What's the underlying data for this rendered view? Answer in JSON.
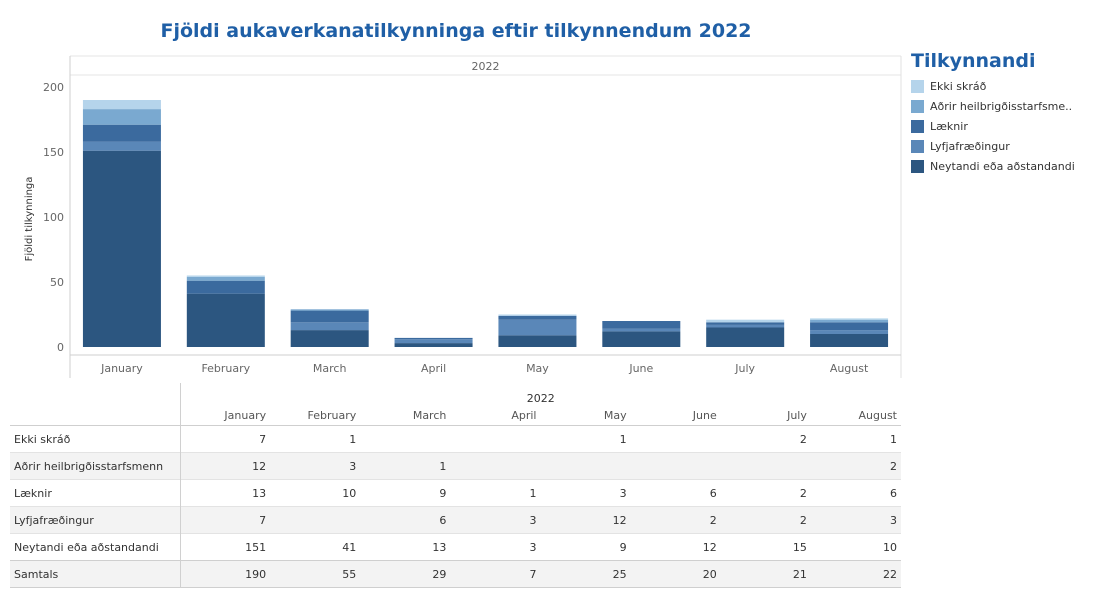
{
  "title": "Fjöldi aukaverkanatilkynninga eftir tilkynnendum 2022",
  "legend": {
    "title": "Tilkynnandi",
    "items": [
      {
        "label": "Ekki skráð",
        "color": "#b5d4eb"
      },
      {
        "label": "Aðrir heilbrigðisstarfsme..",
        "color": "#7aa9d0"
      },
      {
        "label": "Læknir",
        "color": "#3b6a9e"
      },
      {
        "label": "Lyfjafræðingur",
        "color": "#5a87b8"
      },
      {
        "label": "Neytandi eða aðstandandi",
        "color": "#2c5680"
      }
    ]
  },
  "chart_data": {
    "type": "bar",
    "stacked": true,
    "panel_header": "2022",
    "ylabel": "Fjöldi tilkynninga",
    "ylim": [
      0,
      200
    ],
    "yticks": [
      0,
      50,
      100,
      150,
      200
    ],
    "categories": [
      "January",
      "February",
      "March",
      "April",
      "May",
      "June",
      "July",
      "August"
    ],
    "series": [
      {
        "name": "Neytandi eða aðstandandi",
        "color": "#2c5680",
        "values": [
          151,
          41,
          13,
          3,
          9,
          12,
          15,
          10
        ]
      },
      {
        "name": "Lyfjafræðingur",
        "color": "#5a87b8",
        "values": [
          7,
          0,
          6,
          3,
          12,
          2,
          2,
          3
        ]
      },
      {
        "name": "Læknir",
        "color": "#3b6a9e",
        "values": [
          13,
          10,
          9,
          1,
          3,
          6,
          2,
          6
        ]
      },
      {
        "name": "Aðrir heilbrigðisstarfsmenn",
        "color": "#7aa9d0",
        "values": [
          12,
          3,
          1,
          0,
          0,
          0,
          0,
          2
        ]
      },
      {
        "name": "Ekki skráð",
        "color": "#b5d4eb",
        "values": [
          7,
          1,
          0,
          0,
          1,
          0,
          2,
          1
        ]
      }
    ]
  },
  "table": {
    "year": "2022",
    "months": [
      "January",
      "February",
      "March",
      "April",
      "May",
      "June",
      "July",
      "August"
    ],
    "rows": [
      {
        "label": "Ekki skráð",
        "values": [
          "7",
          "1",
          "",
          "",
          "1",
          "",
          "2",
          "1"
        ]
      },
      {
        "label": "Aðrir heilbrigðisstarfsmenn",
        "values": [
          "12",
          "3",
          "1",
          "",
          "",
          "",
          "",
          "2"
        ]
      },
      {
        "label": "Læknir",
        "values": [
          "13",
          "10",
          "9",
          "1",
          "3",
          "6",
          "2",
          "6"
        ]
      },
      {
        "label": "Lyfjafræðingur",
        "values": [
          "7",
          "",
          "6",
          "3",
          "12",
          "2",
          "2",
          "3"
        ]
      },
      {
        "label": "Neytandi eða aðstandandi",
        "values": [
          "151",
          "41",
          "13",
          "3",
          "9",
          "12",
          "15",
          "10"
        ]
      }
    ],
    "total": {
      "label": "Samtals",
      "values": [
        "190",
        "55",
        "29",
        "7",
        "25",
        "20",
        "21",
        "22"
      ]
    }
  }
}
